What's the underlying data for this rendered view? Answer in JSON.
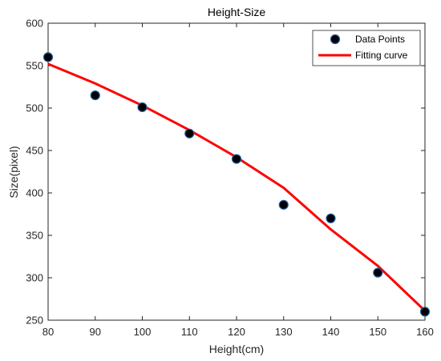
{
  "chart_data": {
    "type": "scatter",
    "title": "Height-Size",
    "xlabel": "Height(cm)",
    "ylabel": "Size(pixel)",
    "xlim": [
      80,
      160
    ],
    "ylim": [
      250,
      600
    ],
    "xticks": [
      80,
      90,
      100,
      110,
      120,
      130,
      140,
      150,
      160
    ],
    "yticks": [
      250,
      300,
      350,
      400,
      450,
      500,
      550,
      600
    ],
    "grid": false,
    "legend_position": "top-right",
    "series": [
      {
        "name": "Data Points",
        "kind": "scatter",
        "color": "#000000",
        "edge_color": "#1f5fa8",
        "x": [
          80,
          90,
          100,
          110,
          120,
          130,
          140,
          150,
          160
        ],
        "y": [
          560,
          515,
          501,
          470,
          440,
          386,
          370,
          306,
          260
        ]
      },
      {
        "name": "Fitting curve",
        "kind": "line",
        "color": "#ff0000",
        "x": [
          80,
          90,
          100,
          110,
          120,
          130,
          140,
          150,
          160
        ],
        "y": [
          552,
          529,
          503,
          474,
          442,
          406,
          357,
          314,
          261
        ]
      }
    ]
  }
}
